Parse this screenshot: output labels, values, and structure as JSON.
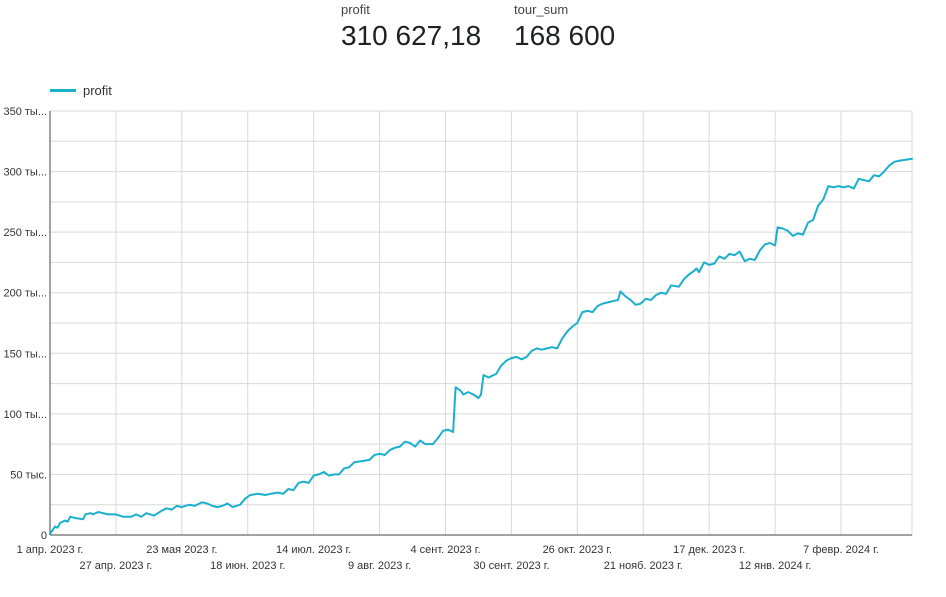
{
  "scorecards": [
    {
      "label": "profit",
      "value": "310 627,18"
    },
    {
      "label": "tour_sum",
      "value": "168 600"
    }
  ],
  "chart_data": {
    "type": "line",
    "legend": {
      "position": "top-left",
      "entries": [
        "profit"
      ]
    },
    "grid": true,
    "color": "#1ab0cd",
    "x_range": [
      "2023-04-01",
      "2024-03-06"
    ],
    "ylim": [
      0,
      350000
    ],
    "y_ticks": [
      {
        "value": 0,
        "label": "0"
      },
      {
        "value": 50000,
        "label": "50 тыс."
      },
      {
        "value": 100000,
        "label": "100 ты..."
      },
      {
        "value": 150000,
        "label": "150 ты..."
      },
      {
        "value": 200000,
        "label": "200 ты..."
      },
      {
        "value": 250000,
        "label": "250 ты..."
      },
      {
        "value": 300000,
        "label": "300 ты..."
      },
      {
        "value": 350000,
        "label": "350 ты..."
      }
    ],
    "x_ticks": [
      {
        "date": "2023-04-01",
        "label": "1 апр. 2023 г.",
        "row": 0
      },
      {
        "date": "2023-04-27",
        "label": "27 апр. 2023 г.",
        "row": 1
      },
      {
        "date": "2023-05-23",
        "label": "23 мая 2023 г.",
        "row": 0
      },
      {
        "date": "2023-06-18",
        "label": "18 июн. 2023 г.",
        "row": 1
      },
      {
        "date": "2023-07-14",
        "label": "14 июл. 2023 г.",
        "row": 0
      },
      {
        "date": "2023-08-09",
        "label": "9 авг. 2023 г.",
        "row": 1
      },
      {
        "date": "2023-09-04",
        "label": "4 сент. 2023 г.",
        "row": 0
      },
      {
        "date": "2023-09-30",
        "label": "30 сент. 2023 г.",
        "row": 1
      },
      {
        "date": "2023-10-26",
        "label": "26 окт. 2023 г.",
        "row": 0
      },
      {
        "date": "2023-11-21",
        "label": "21 нояб. 2023 г.",
        "row": 1
      },
      {
        "date": "2023-12-17",
        "label": "17 дек. 2023 г.",
        "row": 0
      },
      {
        "date": "2024-01-12",
        "label": "12 янв. 2024 г.",
        "row": 1
      },
      {
        "date": "2024-02-07",
        "label": "7 февр. 2024 г.",
        "row": 0
      }
    ],
    "series": [
      {
        "name": "profit",
        "points": [
          [
            "2023-04-01",
            1000
          ],
          [
            "2023-04-02",
            4000
          ],
          [
            "2023-04-03",
            7000
          ],
          [
            "2023-04-04",
            6000
          ],
          [
            "2023-04-05",
            10000
          ],
          [
            "2023-04-07",
            12000
          ],
          [
            "2023-04-08",
            11000
          ],
          [
            "2023-04-09",
            15000
          ],
          [
            "2023-04-11",
            14000
          ],
          [
            "2023-04-14",
            13000
          ],
          [
            "2023-04-15",
            17000
          ],
          [
            "2023-04-17",
            18000
          ],
          [
            "2023-04-18",
            17000
          ],
          [
            "2023-04-20",
            19000
          ],
          [
            "2023-04-22",
            18000
          ],
          [
            "2023-04-24",
            17000
          ],
          [
            "2023-04-27",
            17000
          ],
          [
            "2023-04-30",
            15000
          ],
          [
            "2023-05-03",
            15000
          ],
          [
            "2023-05-05",
            17000
          ],
          [
            "2023-05-07",
            15000
          ],
          [
            "2023-05-09",
            18000
          ],
          [
            "2023-05-12",
            16000
          ],
          [
            "2023-05-15",
            20000
          ],
          [
            "2023-05-17",
            22000
          ],
          [
            "2023-05-19",
            21000
          ],
          [
            "2023-05-21",
            24000
          ],
          [
            "2023-05-23",
            23000
          ],
          [
            "2023-05-26",
            25000
          ],
          [
            "2023-05-28",
            24000
          ],
          [
            "2023-05-31",
            27000
          ],
          [
            "2023-06-02",
            26000
          ],
          [
            "2023-06-04",
            24000
          ],
          [
            "2023-06-06",
            23000
          ],
          [
            "2023-06-08",
            24000
          ],
          [
            "2023-06-10",
            26000
          ],
          [
            "2023-06-12",
            23000
          ],
          [
            "2023-06-15",
            25000
          ],
          [
            "2023-06-17",
            30000
          ],
          [
            "2023-06-19",
            33000
          ],
          [
            "2023-06-22",
            34000
          ],
          [
            "2023-06-25",
            33000
          ],
          [
            "2023-06-27",
            34000
          ],
          [
            "2023-06-30",
            35000
          ],
          [
            "2023-07-02",
            34000
          ],
          [
            "2023-07-04",
            38000
          ],
          [
            "2023-07-06",
            37000
          ],
          [
            "2023-07-08",
            43000
          ],
          [
            "2023-07-10",
            44000
          ],
          [
            "2023-07-12",
            43000
          ],
          [
            "2023-07-14",
            49000
          ],
          [
            "2023-07-16",
            50000
          ],
          [
            "2023-07-18",
            52000
          ],
          [
            "2023-07-20",
            49000
          ],
          [
            "2023-07-22",
            50000
          ],
          [
            "2023-07-24",
            50000
          ],
          [
            "2023-07-26",
            55000
          ],
          [
            "2023-07-28",
            56000
          ],
          [
            "2023-07-30",
            60000
          ],
          [
            "2023-08-02",
            61000
          ],
          [
            "2023-08-05",
            62000
          ],
          [
            "2023-08-07",
            66000
          ],
          [
            "2023-08-09",
            67000
          ],
          [
            "2023-08-11",
            66000
          ],
          [
            "2023-08-13",
            70000
          ],
          [
            "2023-08-15",
            72000
          ],
          [
            "2023-08-17",
            73000
          ],
          [
            "2023-08-19",
            77000
          ],
          [
            "2023-08-21",
            76000
          ],
          [
            "2023-08-23",
            73000
          ],
          [
            "2023-08-25",
            78000
          ],
          [
            "2023-08-27",
            75000
          ],
          [
            "2023-08-30",
            75000
          ],
          [
            "2023-09-01",
            80000
          ],
          [
            "2023-09-03",
            86000
          ],
          [
            "2023-09-05",
            87000
          ],
          [
            "2023-09-07",
            85000
          ],
          [
            "2023-09-08",
            122000
          ],
          [
            "2023-09-10",
            119000
          ],
          [
            "2023-09-11",
            116000
          ],
          [
            "2023-09-13",
            118000
          ],
          [
            "2023-09-15",
            116000
          ],
          [
            "2023-09-17",
            113000
          ],
          [
            "2023-09-18",
            116000
          ],
          [
            "2023-09-19",
            132000
          ],
          [
            "2023-09-21",
            130000
          ],
          [
            "2023-09-24",
            133000
          ],
          [
            "2023-09-26",
            140000
          ],
          [
            "2023-09-28",
            144000
          ],
          [
            "2023-09-30",
            146000
          ],
          [
            "2023-10-02",
            147000
          ],
          [
            "2023-10-04",
            145000
          ],
          [
            "2023-10-06",
            147000
          ],
          [
            "2023-10-08",
            152000
          ],
          [
            "2023-10-10",
            154000
          ],
          [
            "2023-10-12",
            153000
          ],
          [
            "2023-10-14",
            154000
          ],
          [
            "2023-10-16",
            155000
          ],
          [
            "2023-10-18",
            154000
          ],
          [
            "2023-10-20",
            162000
          ],
          [
            "2023-10-22",
            168000
          ],
          [
            "2023-10-24",
            172000
          ],
          [
            "2023-10-26",
            175000
          ],
          [
            "2023-10-28",
            184000
          ],
          [
            "2023-10-30",
            185000
          ],
          [
            "2023-11-01",
            184000
          ],
          [
            "2023-11-03",
            189000
          ],
          [
            "2023-11-05",
            191000
          ],
          [
            "2023-11-07",
            192000
          ],
          [
            "2023-11-09",
            193000
          ],
          [
            "2023-11-11",
            194000
          ],
          [
            "2023-11-12",
            201000
          ],
          [
            "2023-11-14",
            197000
          ],
          [
            "2023-11-16",
            194000
          ],
          [
            "2023-11-18",
            190000
          ],
          [
            "2023-11-20",
            191000
          ],
          [
            "2023-11-22",
            195000
          ],
          [
            "2023-11-24",
            194000
          ],
          [
            "2023-11-26",
            198000
          ],
          [
            "2023-11-28",
            200000
          ],
          [
            "2023-11-30",
            199000
          ],
          [
            "2023-12-02",
            206000
          ],
          [
            "2023-12-05",
            205000
          ],
          [
            "2023-12-07",
            211000
          ],
          [
            "2023-12-09",
            215000
          ],
          [
            "2023-12-11",
            218000
          ],
          [
            "2023-12-12",
            220000
          ],
          [
            "2023-12-13",
            217000
          ],
          [
            "2023-12-15",
            225000
          ],
          [
            "2023-12-17",
            223000
          ],
          [
            "2023-12-19",
            224000
          ],
          [
            "2023-12-21",
            230000
          ],
          [
            "2023-12-23",
            228000
          ],
          [
            "2023-12-25",
            232000
          ],
          [
            "2023-12-27",
            231000
          ],
          [
            "2023-12-29",
            234000
          ],
          [
            "2023-12-31",
            226000
          ],
          [
            "2024-01-02",
            228000
          ],
          [
            "2024-01-04",
            227000
          ],
          [
            "2024-01-06",
            235000
          ],
          [
            "2024-01-08",
            240000
          ],
          [
            "2024-01-10",
            241000
          ],
          [
            "2024-01-12",
            239000
          ],
          [
            "2024-01-13",
            254000
          ],
          [
            "2024-01-15",
            253000
          ],
          [
            "2024-01-17",
            251000
          ],
          [
            "2024-01-19",
            247000
          ],
          [
            "2024-01-21",
            249000
          ],
          [
            "2024-01-23",
            248000
          ],
          [
            "2024-01-25",
            258000
          ],
          [
            "2024-01-27",
            260000
          ],
          [
            "2024-01-29",
            272000
          ],
          [
            "2024-01-31",
            277000
          ],
          [
            "2024-02-02",
            288000
          ],
          [
            "2024-02-04",
            287000
          ],
          [
            "2024-02-06",
            288000
          ],
          [
            "2024-02-08",
            287000
          ],
          [
            "2024-02-10",
            288000
          ],
          [
            "2024-02-12",
            286000
          ],
          [
            "2024-02-14",
            294000
          ],
          [
            "2024-02-16",
            293000
          ],
          [
            "2024-02-18",
            292000
          ],
          [
            "2024-02-20",
            297000
          ],
          [
            "2024-02-22",
            296000
          ],
          [
            "2024-02-24",
            300000
          ],
          [
            "2024-02-26",
            305000
          ],
          [
            "2024-02-28",
            308000
          ],
          [
            "2024-03-01",
            309000
          ],
          [
            "2024-03-06",
            310627
          ]
        ]
      }
    ]
  }
}
